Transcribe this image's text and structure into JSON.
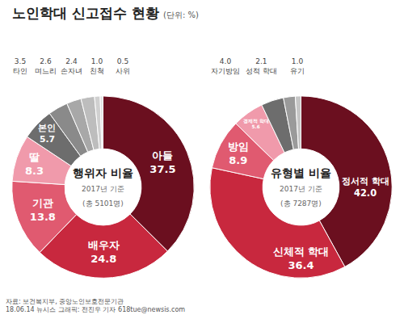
{
  "title": "노인학대 신고접수 현황",
  "subtitle": "(단위: %)",
  "source": [
    "자료: 보건복지부, 중앙노인보호전문기관",
    "18.06.14 뉴시스 그래픽: 전진우 기자 618tue@newsis.com"
  ],
  "chart_data": [
    {
      "type": "pie",
      "title": "행위자 비율",
      "subtitle": "2017년 기준",
      "note": "(총 5101명)",
      "categories": [
        "아들",
        "배우자",
        "기관",
        "딸",
        "본인",
        "타인",
        "며느리",
        "손자녀",
        "친척",
        "사위"
      ],
      "values": [
        37.5,
        24.8,
        13.8,
        8.3,
        5.7,
        3.5,
        2.6,
        2.4,
        1.0,
        0.5
      ],
      "value_labels": [
        "37.5",
        "24.8",
        "13.8",
        "8.3",
        "5.7",
        "3.5",
        "2.6",
        "2.4",
        "1.0",
        "0.5"
      ],
      "colors": [
        "#6b0f1f",
        "#c8283e",
        "#e05a70",
        "#f09aab",
        "#6d6d6d",
        "#8a8a8a",
        "#a8a8a8",
        "#bdbdbd",
        "#d0d0d0",
        "#e2e2e2"
      ],
      "data_labels": true
    },
    {
      "type": "pie",
      "title": "유형별 비율",
      "subtitle": "2017년 기준",
      "note": "(총 7287명)",
      "categories": [
        "정서적 학대",
        "신체적 학대",
        "방임",
        "경제적 학대",
        "자기방임",
        "성적 학대",
        "유기"
      ],
      "values": [
        42.0,
        36.4,
        8.9,
        5.6,
        4.0,
        2.1,
        1.0
      ],
      "value_labels": [
        "42.0",
        "36.4",
        "8.9",
        "5.6",
        "4.0",
        "2.1",
        "1.0"
      ],
      "colors": [
        "#6b0f1f",
        "#c8283e",
        "#e05a70",
        "#f09aab",
        "#6d6d6d",
        "#9a9a9a",
        "#c6c6c6"
      ],
      "data_labels": true
    }
  ]
}
